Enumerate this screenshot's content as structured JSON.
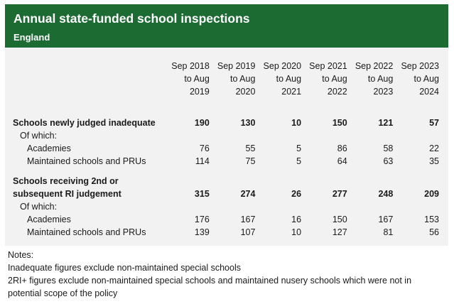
{
  "header": {
    "title": "Annual state-funded school inspections",
    "subtitle": "England"
  },
  "table": {
    "columns": [
      [
        "Sep 2018",
        "to Aug",
        "2019"
      ],
      [
        "Sep 2019",
        "to Aug",
        "2020"
      ],
      [
        "Sep 2020",
        "to Aug",
        "2021"
      ],
      [
        "Sep 2021",
        "to Aug",
        "2022"
      ],
      [
        "Sep 2022",
        "to Aug",
        "2023"
      ],
      [
        "Sep 2023",
        "to Aug",
        "2024"
      ]
    ],
    "section1": {
      "label": "Schools newly judged inadequate",
      "values": [
        "190",
        "130",
        "10",
        "150",
        "121",
        "57"
      ],
      "of_which": "Of which:",
      "rows": [
        {
          "label": "Academies",
          "values": [
            "76",
            "55",
            "5",
            "86",
            "58",
            "22"
          ]
        },
        {
          "label": "Maintained schools and PRUs",
          "values": [
            "114",
            "75",
            "5",
            "64",
            "63",
            "35"
          ]
        }
      ]
    },
    "section2": {
      "label_line1": "Schools receiving 2nd or",
      "label_line2": "subsequent RI judgement",
      "values": [
        "315",
        "274",
        "26",
        "277",
        "248",
        "209"
      ],
      "of_which": "Of which:",
      "rows": [
        {
          "label": "Academies",
          "values": [
            "176",
            "167",
            "16",
            "150",
            "167",
            "153"
          ]
        },
        {
          "label": "Maintained schools and PRUs",
          "values": [
            "139",
            "107",
            "10",
            "127",
            "81",
            "56"
          ]
        }
      ]
    }
  },
  "notes": {
    "heading": "Notes:",
    "line1": "Inadequate figures exclude non-maintained special schools",
    "line2": "2RI+ figures exclude non-maintained special schools and maintained nusery schools which were not in",
    "line3": "potential scope of the policy"
  },
  "colors": {
    "header_bg": "#1c6b33",
    "panel_bg": "#f2f2f2"
  }
}
